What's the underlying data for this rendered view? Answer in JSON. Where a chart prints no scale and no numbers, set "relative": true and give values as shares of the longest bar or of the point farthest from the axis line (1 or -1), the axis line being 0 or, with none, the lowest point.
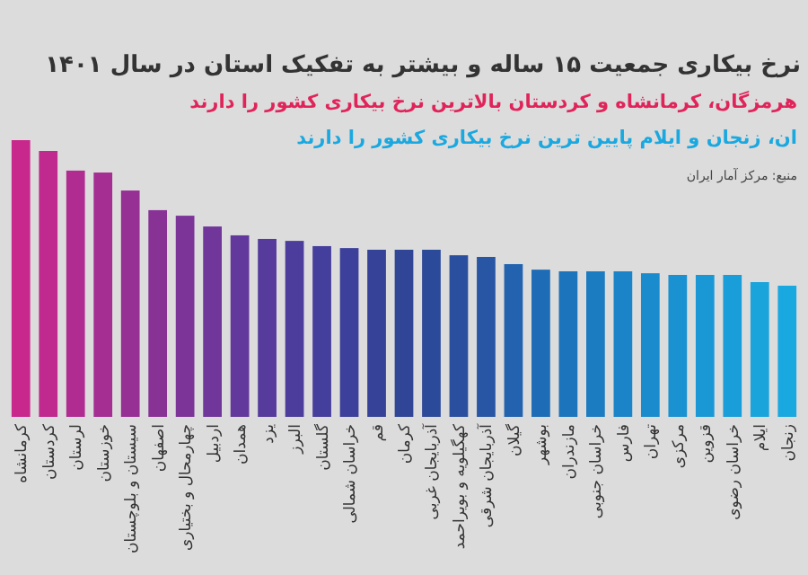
{
  "chart_data": {
    "type": "bar",
    "relative": true,
    "title": "نرخ بیکاری جمعیت ۱۵ ساله و بیشتر به تفکیک استان در سال ۱۴۰۱",
    "subtitle": "هرمزگان، کرمانشاه و کردستان بالاترین نرخ بیکاری کشور را دارند",
    "annotations": [
      "ان، زنجان و ایلام پایین ترین نرخ بیکاری کشور را دارند",
      "منبع: مرکز آمار ایران"
    ],
    "categories": [
      "کرمانشاه",
      "کردستان",
      "لرستان",
      "خوزستان",
      "سیستان و بلوچستان",
      "اصفهان",
      "چهارمحال و بختیاری",
      "اردبیل",
      "همدان",
      "یزد",
      "البرز",
      "گلستان",
      "خراسان شمالی",
      "قم",
      "کرمان",
      "آذربایجان غربی",
      "کهگیلویه و بویراحمد",
      "آذربایجان شرقی",
      "گیلان",
      "بوشهر",
      "مازندران",
      "خراسان جنوبی",
      "فارس",
      "تهران",
      "مرکزی",
      "قزوین",
      "خراسان رضوی",
      "ایلام",
      "زنجان"
    ],
    "values": [
      1,
      0.961,
      0.89,
      0.883,
      0.818,
      0.747,
      0.727,
      0.688,
      0.656,
      0.643,
      0.636,
      0.617,
      0.61,
      0.604,
      0.604,
      0.604,
      0.584,
      0.578,
      0.552,
      0.532,
      0.526,
      0.526,
      0.526,
      0.519,
      0.513,
      0.513,
      0.513,
      0.487,
      0.474
    ],
    "colors": [
      "#c8288c",
      "#c02a8e",
      "#b02c90",
      "#a42e92",
      "#963094",
      "#883296",
      "#7c3498",
      "#70369a",
      "#62389c",
      "#563a9c",
      "#4c3c9c",
      "#443e9c",
      "#3c409a",
      "#364298",
      "#304596",
      "#2c4a9a",
      "#2a4f9e",
      "#2856a4",
      "#2262ae",
      "#1e6cb6",
      "#1c74bc",
      "#1c7cc2",
      "#1b84c8",
      "#1a8ccd",
      "#1a92d2",
      "#1a98d6",
      "#1a9ed9",
      "#1aa4dc",
      "#1aa8e0"
    ]
  }
}
